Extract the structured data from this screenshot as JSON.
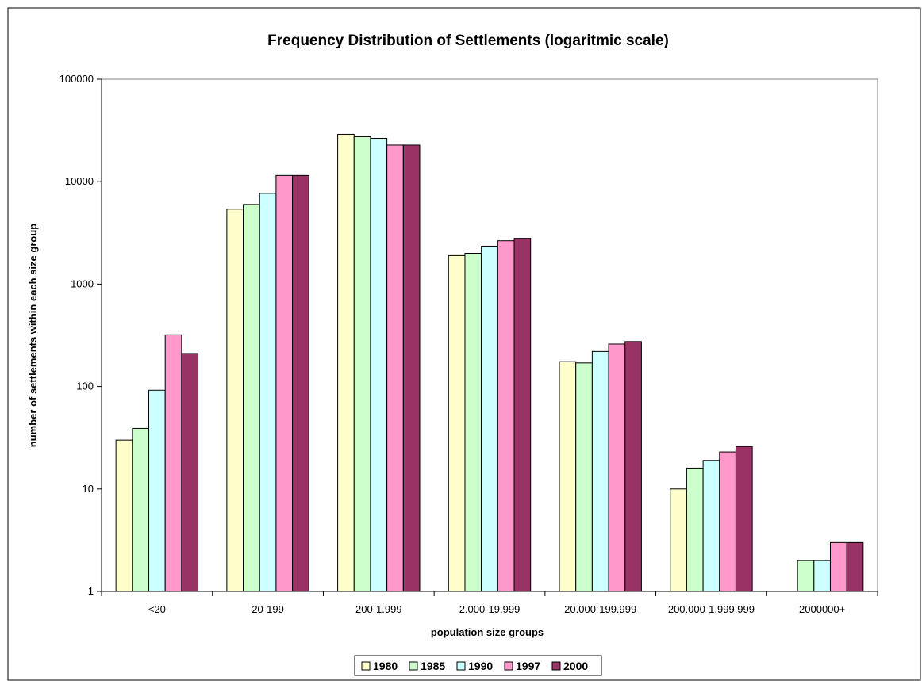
{
  "chart_data": {
    "type": "bar",
    "title": "Frequency Distribution of Settlements (logaritmic scale)",
    "xlabel": "population size groups",
    "ylabel": "number of settlements within each size group",
    "y_scale": "log",
    "ylim": [
      1,
      100000
    ],
    "y_ticks": [
      "1",
      "10",
      "100",
      "1000",
      "10000",
      "100000"
    ],
    "grid": false,
    "legend_position": "bottom",
    "categories": [
      "<20",
      "20-199",
      "200-1.999",
      "2.000-19.999",
      "20.000-199.999",
      "200.000-1.999.999",
      "2000000+"
    ],
    "series": [
      {
        "name": "1980",
        "color": "#FFFFCC",
        "values": [
          30,
          5400,
          29000,
          1900,
          175,
          10,
          null
        ]
      },
      {
        "name": "1985",
        "color": "#CCFFCC",
        "values": [
          39,
          6000,
          27500,
          2000,
          170,
          16,
          2
        ]
      },
      {
        "name": "1990",
        "color": "#CCFFFF",
        "values": [
          92,
          7700,
          26500,
          2350,
          220,
          19,
          2
        ]
      },
      {
        "name": "1997",
        "color": "#FF99CC",
        "values": [
          320,
          11500,
          22800,
          2650,
          260,
          23,
          3
        ]
      },
      {
        "name": "2000",
        "color": "#993366",
        "values": [
          210,
          11500,
          22800,
          2800,
          275,
          26,
          3
        ]
      }
    ]
  }
}
